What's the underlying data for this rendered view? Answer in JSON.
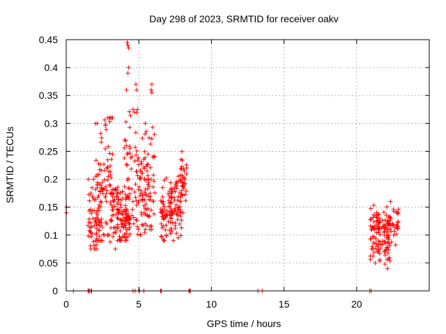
{
  "chart_data": {
    "type": "scatter",
    "title": "Day 298 of 2023, SRMTID for receiver oakv",
    "xlabel": "GPS time / hours",
    "ylabel": "SRMTID / TECUs",
    "xlim": [
      0,
      25
    ],
    "ylim": [
      0,
      0.45
    ],
    "xticks": [
      0,
      5,
      10,
      15,
      20
    ],
    "xtick_labels": [
      "0",
      "5",
      "10",
      "15",
      "20"
    ],
    "yticks": [
      0,
      0.05,
      0.1,
      0.15,
      0.2,
      0.25,
      0.3,
      0.35,
      0.4,
      0.45
    ],
    "ytick_labels": [
      "0",
      "0.05",
      "0.1",
      "0.15",
      "0.2",
      "0.25",
      "0.3",
      "0.35",
      "0.4",
      "0.45"
    ],
    "grid": true,
    "marker": "+",
    "color": "#ff0000",
    "clusters": [
      {
        "x_range": [
          1.5,
          2.2
        ],
        "y_center": 0.13,
        "y_spread": 0.04,
        "count": 45,
        "y_min": 0.075,
        "y_max": 0.2
      },
      {
        "x_range": [
          2.0,
          2.5
        ],
        "y_center": 0.17,
        "y_spread": 0.07,
        "count": 60,
        "y_min": 0.09,
        "y_max": 0.3
      },
      {
        "x_range": [
          2.5,
          3.2
        ],
        "y_center": 0.22,
        "y_spread": 0.07,
        "count": 55,
        "y_min": 0.1,
        "y_max": 0.31
      },
      {
        "x_range": [
          3.0,
          3.6
        ],
        "y_center": 0.14,
        "y_spread": 0.03,
        "count": 45,
        "y_min": 0.075,
        "y_max": 0.2
      },
      {
        "x_range": [
          3.5,
          4.4
        ],
        "y_center": 0.13,
        "y_spread": 0.025,
        "count": 80,
        "y_min": 0.09,
        "y_max": 0.19
      },
      {
        "x_range": [
          4.0,
          4.9
        ],
        "y_center": 0.22,
        "y_spread": 0.07,
        "count": 50,
        "y_min": 0.12,
        "y_max": 0.36
      },
      {
        "x_range": [
          4.8,
          5.6
        ],
        "y_center": 0.17,
        "y_spread": 0.04,
        "count": 60,
        "y_min": 0.1,
        "y_max": 0.3
      },
      {
        "x_range": [
          5.4,
          6.1
        ],
        "y_center": 0.2,
        "y_spread": 0.06,
        "count": 50,
        "y_min": 0.11,
        "y_max": 0.3
      },
      {
        "x_range": [
          6.5,
          7.3
        ],
        "y_center": 0.14,
        "y_spread": 0.03,
        "count": 70,
        "y_min": 0.08,
        "y_max": 0.23
      },
      {
        "x_range": [
          7.2,
          8.0
        ],
        "y_center": 0.15,
        "y_spread": 0.03,
        "count": 60,
        "y_min": 0.09,
        "y_max": 0.22
      },
      {
        "x_range": [
          7.8,
          8.3
        ],
        "y_center": 0.19,
        "y_spread": 0.03,
        "count": 35,
        "y_min": 0.14,
        "y_max": 0.27
      },
      {
        "x_range": [
          20.9,
          21.6
        ],
        "y_center": 0.1,
        "y_spread": 0.025,
        "count": 55,
        "y_min": 0.05,
        "y_max": 0.17
      },
      {
        "x_range": [
          21.5,
          22.3
        ],
        "y_center": 0.09,
        "y_spread": 0.025,
        "count": 60,
        "y_min": 0.04,
        "y_max": 0.15
      },
      {
        "x_range": [
          22.0,
          22.9
        ],
        "y_center": 0.12,
        "y_spread": 0.02,
        "count": 45,
        "y_min": 0.06,
        "y_max": 0.16
      }
    ],
    "extra_points": [
      {
        "x": 0.02,
        "y": 0.15
      },
      {
        "x": 0.02,
        "y": 0.14
      },
      {
        "x": 4.2,
        "y": 0.445
      },
      {
        "x": 4.3,
        "y": 0.435
      },
      {
        "x": 4.25,
        "y": 0.44
      },
      {
        "x": 4.3,
        "y": 0.4
      },
      {
        "x": 4.25,
        "y": 0.39
      },
      {
        "x": 4.15,
        "y": 0.36
      },
      {
        "x": 4.8,
        "y": 0.37
      },
      {
        "x": 4.6,
        "y": 0.325
      },
      {
        "x": 4.7,
        "y": 0.32
      },
      {
        "x": 5.9,
        "y": 0.37
      },
      {
        "x": 5.85,
        "y": 0.36
      },
      {
        "x": 5.9,
        "y": 0.355
      },
      {
        "x": 4.9,
        "y": 0.325
      }
    ],
    "zero_points_x": [
      0.5,
      1.5,
      1.55,
      1.6,
      1.7,
      1.75,
      4.6,
      4.75,
      5.0,
      5.05,
      5.35,
      6.5,
      6.55,
      8.45,
      8.5,
      8.55,
      13.2,
      13.5,
      20.9,
      21.0
    ]
  }
}
